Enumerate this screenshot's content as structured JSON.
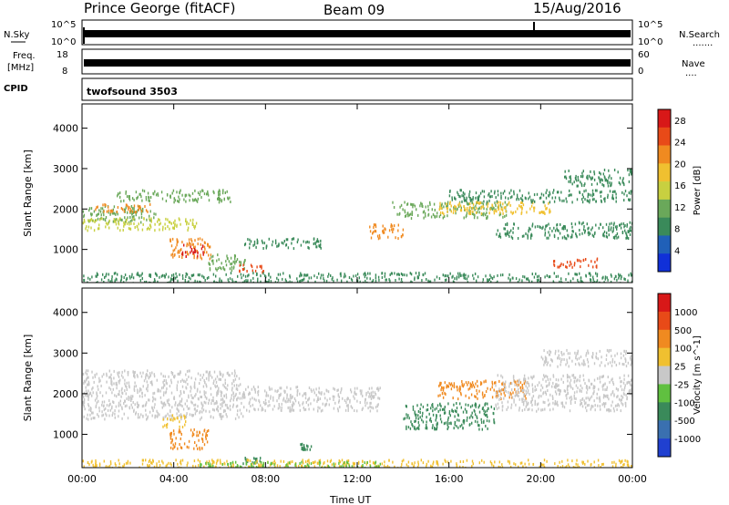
{
  "header": {
    "station": "Prince George (fitACF)",
    "beam": "Beam 09",
    "date": "15/Aug/2016"
  },
  "side_labels": {
    "nsky": "N.Sky",
    "freq_line1": "Freq.",
    "freq_line2": "[MHz]",
    "cpid": "CPID",
    "nsearch": "N.Search",
    "nave": "Nave",
    "nsearch_dots": ".......",
    "nave_dots": "...."
  },
  "mini_ticks": {
    "nsky_top": "10^5",
    "nsky_bottom": "10^0",
    "freq_top": "18",
    "freq_bottom": "8",
    "nave_top": "60",
    "nave_bottom": "0"
  },
  "cpid_text": "twofsound 3503",
  "chart_data": [
    {
      "type": "heatmap",
      "name": "power",
      "ylabel": "Slant Range [km]",
      "xlabel": "",
      "x_ticks": [
        "00:00",
        "04:00",
        "08:00",
        "12:00",
        "16:00",
        "20:00",
        "00:00"
      ],
      "y_ticks": [
        "1000",
        "2000",
        "3000",
        "4000"
      ],
      "xlim_hours": [
        0,
        24
      ],
      "ylim_km": [
        180,
        4600
      ],
      "colorbar": {
        "label": "Power [dB]",
        "ticks": [
          "4",
          "8",
          "12",
          "16",
          "20",
          "24",
          "28"
        ],
        "range": [
          0,
          30
        ],
        "colors": [
          "#1030d8",
          "#2060b8",
          "#3a8a5a",
          "#6aa85a",
          "#c8d040",
          "#f0c030",
          "#f08a20",
          "#e84a18",
          "#d81818"
        ]
      },
      "bands": [
        {
          "h0": 0.0,
          "h1": 3.2,
          "r0": 1700,
          "r1": 2100,
          "level": 3
        },
        {
          "h0": 0.5,
          "h1": 3.0,
          "r0": 1950,
          "r1": 2150,
          "level": 6
        },
        {
          "h0": 0.0,
          "h1": 5.0,
          "r0": 1500,
          "r1": 1800,
          "level": 4
        },
        {
          "h0": 1.5,
          "h1": 6.5,
          "r0": 2200,
          "r1": 2500,
          "level": 3
        },
        {
          "h0": 3.8,
          "h1": 5.6,
          "r0": 780,
          "r1": 1300,
          "level": 6
        },
        {
          "h0": 4.3,
          "h1": 5.3,
          "r0": 850,
          "r1": 1150,
          "level": 8
        },
        {
          "h0": 5.5,
          "h1": 7.2,
          "r0": 500,
          "r1": 900,
          "level": 3
        },
        {
          "h0": 7.0,
          "h1": 10.5,
          "r0": 1050,
          "r1": 1300,
          "level": 2
        },
        {
          "h0": 6.8,
          "h1": 8.0,
          "r0": 450,
          "r1": 650,
          "level": 7
        },
        {
          "h0": 12.5,
          "h1": 14.0,
          "r0": 1300,
          "r1": 1650,
          "level": 6
        },
        {
          "h0": 13.5,
          "h1": 18.5,
          "r0": 1800,
          "r1": 2200,
          "level": 3
        },
        {
          "h0": 15.5,
          "h1": 20.5,
          "r0": 1900,
          "r1": 2200,
          "level": 5
        },
        {
          "h0": 16.0,
          "h1": 24.0,
          "r0": 2200,
          "r1": 2500,
          "level": 2
        },
        {
          "h0": 18.0,
          "h1": 24.0,
          "r0": 1300,
          "r1": 1700,
          "level": 2
        },
        {
          "h0": 20.5,
          "h1": 22.5,
          "r0": 580,
          "r1": 800,
          "level": 7
        },
        {
          "h0": 21.0,
          "h1": 24.0,
          "r0": 2600,
          "r1": 3000,
          "level": 2
        },
        {
          "h0": 0.0,
          "h1": 24.0,
          "r0": 180,
          "r1": 450,
          "level": 2
        }
      ]
    },
    {
      "type": "heatmap",
      "name": "velocity",
      "ylabel": "Slant Range [km]",
      "xlabel": "Time UT",
      "x_ticks": [
        "00:00",
        "04:00",
        "08:00",
        "12:00",
        "16:00",
        "20:00",
        "00:00"
      ],
      "y_ticks": [
        "1000",
        "2000",
        "3000",
        "4000"
      ],
      "xlim_hours": [
        0,
        24
      ],
      "ylim_km": [
        180,
        4600
      ],
      "colorbar": {
        "label": "Velocity [m s^-1]",
        "ticks": [
          "1000",
          "500",
          "100",
          "25",
          "-25",
          "-100",
          "-500",
          "-1000"
        ],
        "colors": [
          "#2040d0",
          "#3a70b0",
          "#3a8a5a",
          "#60c040",
          "#c8c8c8",
          "#f0c030",
          "#f08a20",
          "#e84a18",
          "#d81818"
        ]
      },
      "bands": [
        {
          "h0": 0.0,
          "h1": 7.0,
          "r0": 1400,
          "r1": 2600,
          "color": "#c8c8c8"
        },
        {
          "h0": 7.0,
          "h1": 13.0,
          "r0": 1600,
          "r1": 2200,
          "color": "#c8c8c8"
        },
        {
          "h0": 3.8,
          "h1": 5.5,
          "r0": 650,
          "r1": 1150,
          "color": "#f08a20"
        },
        {
          "h0": 3.5,
          "h1": 4.5,
          "r0": 1200,
          "r1": 1500,
          "color": "#f0c030"
        },
        {
          "h0": 7.0,
          "h1": 7.8,
          "r0": 300,
          "r1": 450,
          "color": "#3a8a5a"
        },
        {
          "h0": 9.5,
          "h1": 10.0,
          "r0": 650,
          "r1": 800,
          "color": "#3a8a5a"
        },
        {
          "h0": 14.0,
          "h1": 18.0,
          "r0": 1150,
          "r1": 1800,
          "color": "#3a8a5a"
        },
        {
          "h0": 15.5,
          "h1": 19.5,
          "r0": 1900,
          "r1": 2350,
          "color": "#f08a20"
        },
        {
          "h0": 18.0,
          "h1": 24.0,
          "r0": 1600,
          "r1": 2500,
          "color": "#c8c8c8"
        },
        {
          "h0": 20.0,
          "h1": 24.0,
          "r0": 2700,
          "r1": 3100,
          "color": "#c8c8c8"
        },
        {
          "h0": 0.0,
          "h1": 24.0,
          "r0": 180,
          "r1": 400,
          "color": "#f0c030"
        },
        {
          "h0": 5.0,
          "h1": 13.0,
          "r0": 180,
          "r1": 350,
          "color": "#60c040"
        }
      ]
    }
  ]
}
